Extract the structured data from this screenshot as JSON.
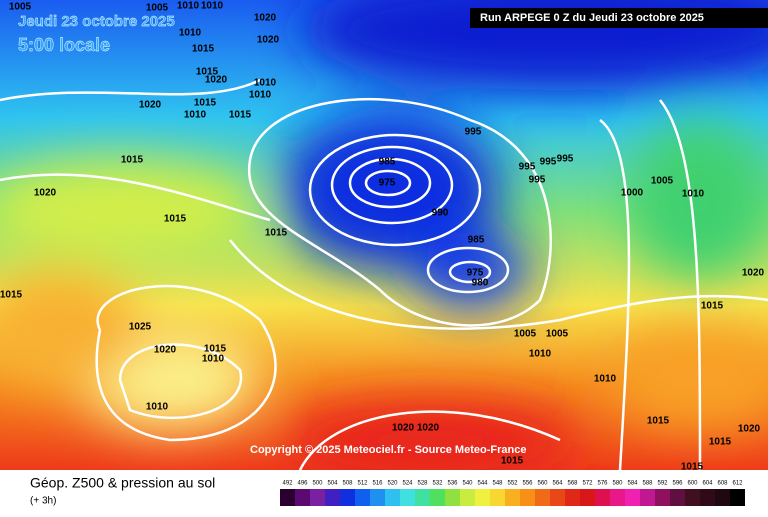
{
  "header": {
    "date": "Jeudi 23 octobre 2025",
    "time": "5:00 locale",
    "run": "Run ARPEGE 0 Z du Jeudi 23 octobre 2025"
  },
  "isobar_labels": [
    "1005",
    "1005",
    "1010",
    "1010",
    "1020",
    "1010",
    "1015",
    "1020",
    "1015",
    "1020",
    "1010",
    "1010",
    "1020",
    "1015",
    "1010",
    "1015",
    "995",
    "985",
    "975",
    "990",
    "985",
    "975",
    "980",
    "1015",
    "1020",
    "1015",
    "1015",
    "1015",
    "1025",
    "1020",
    "1015",
    "1010",
    "1010",
    "995",
    "995",
    "995",
    "995",
    "1000",
    "1005",
    "1010",
    "1020",
    "1015",
    "1005",
    "1005",
    "1010",
    "1010",
    "1020",
    "1020",
    "1015",
    "1015",
    "1020",
    "1015",
    "1015"
  ],
  "copyright": "Copyright © 2025 Meteociel.fr - Source Meteo-France",
  "footer": {
    "title": "Géop. Z500 & pression au sol",
    "subtitle": "(+ 3h)"
  },
  "legend": {
    "ticks": [
      492,
      496,
      500,
      504,
      508,
      512,
      516,
      520,
      524,
      528,
      532,
      536,
      540,
      544,
      548,
      552,
      556,
      560,
      564,
      568,
      572,
      576,
      580,
      584,
      588,
      592,
      596,
      600,
      604,
      608,
      612
    ]
  }
}
